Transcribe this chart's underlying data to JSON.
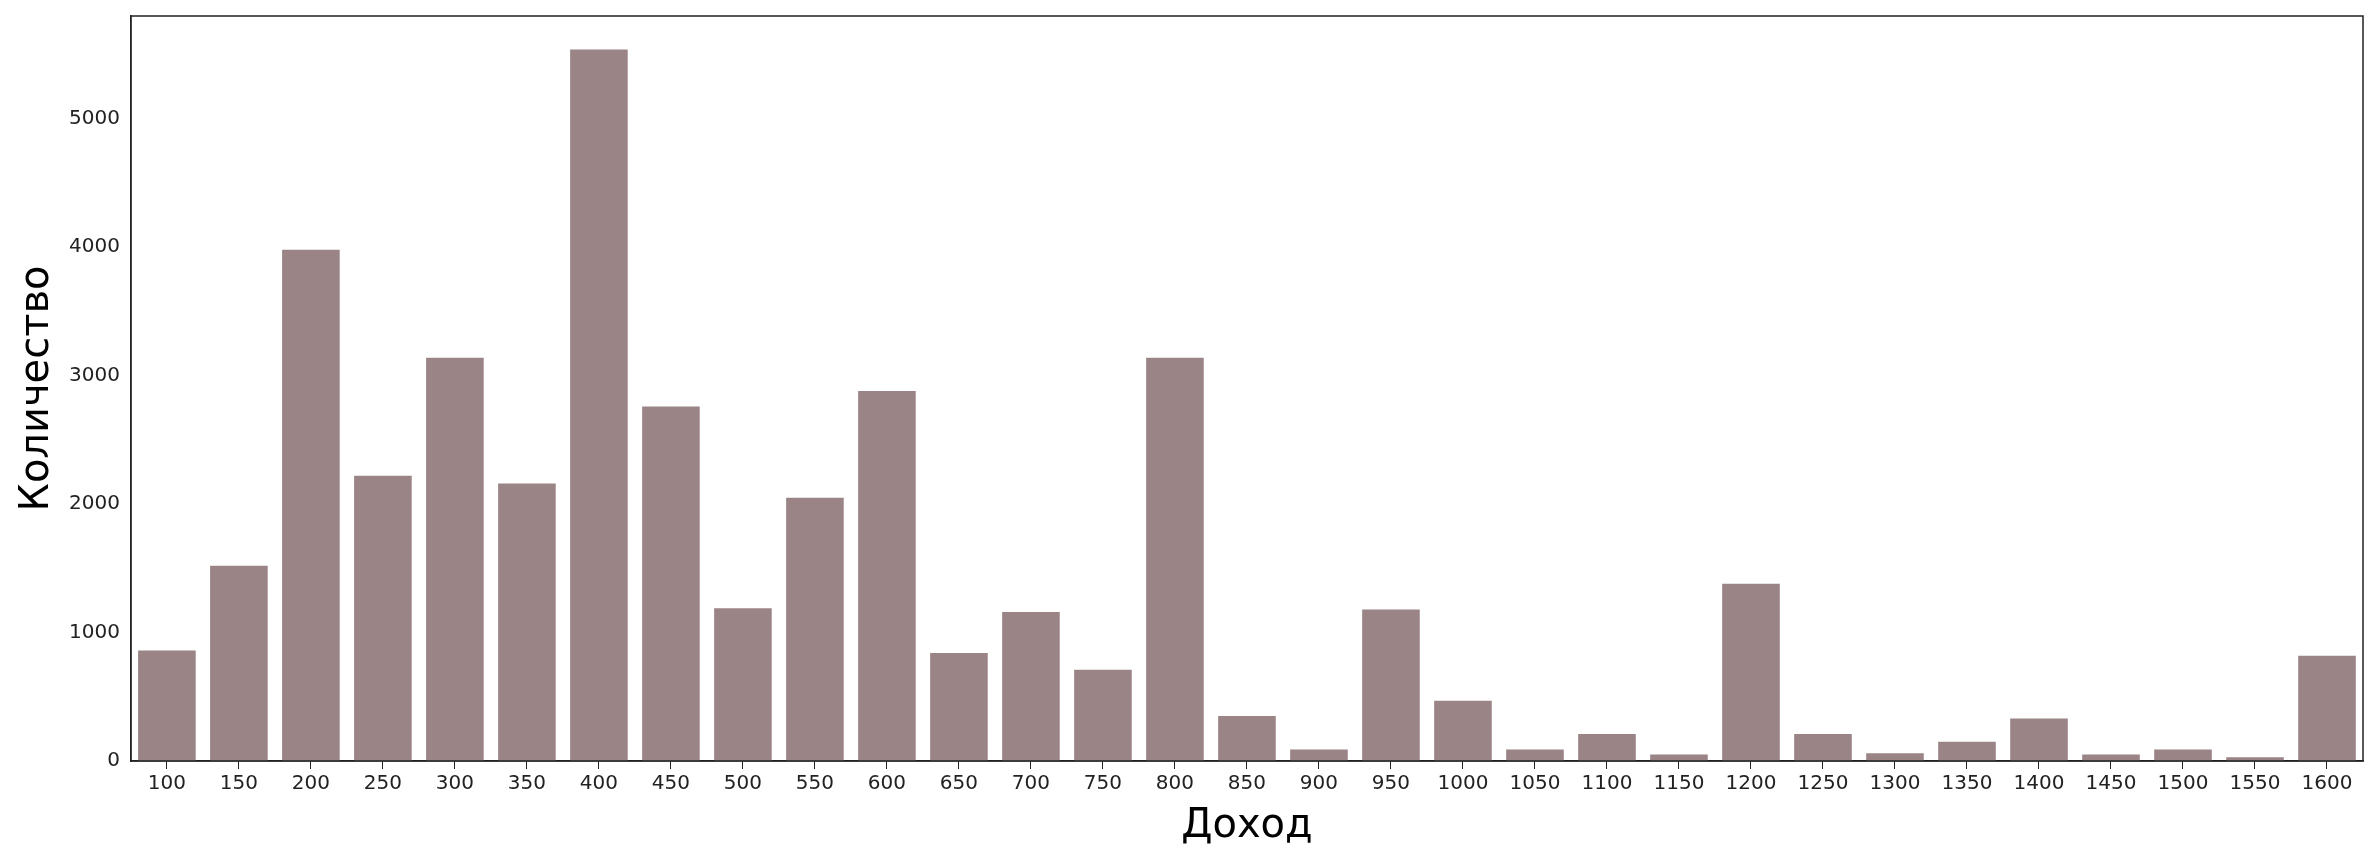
{
  "chart_data": {
    "type": "bar",
    "xlabel": "Доход",
    "ylabel": "Количество",
    "categories": [
      "100",
      "150",
      "200",
      "250",
      "300",
      "350",
      "400",
      "450",
      "500",
      "550",
      "600",
      "650",
      "700",
      "750",
      "800",
      "850",
      "900",
      "950",
      "1000",
      "1050",
      "1100",
      "1150",
      "1200",
      "1250",
      "1300",
      "1350",
      "1400",
      "1450",
      "1500",
      "1550",
      "1600"
    ],
    "values": [
      860,
      1520,
      3980,
      2220,
      3140,
      2160,
      5540,
      2760,
      1190,
      2050,
      2880,
      840,
      1160,
      710,
      3140,
      350,
      90,
      1180,
      470,
      90,
      210,
      50,
      1380,
      210,
      60,
      150,
      330,
      50,
      90,
      30,
      820
    ],
    "color": "#9a8486",
    "ylim": [
      0,
      5800
    ],
    "yticks": [
      0,
      1000,
      2000,
      3000,
      4000,
      5000
    ],
    "grid": false,
    "legend": false
  }
}
